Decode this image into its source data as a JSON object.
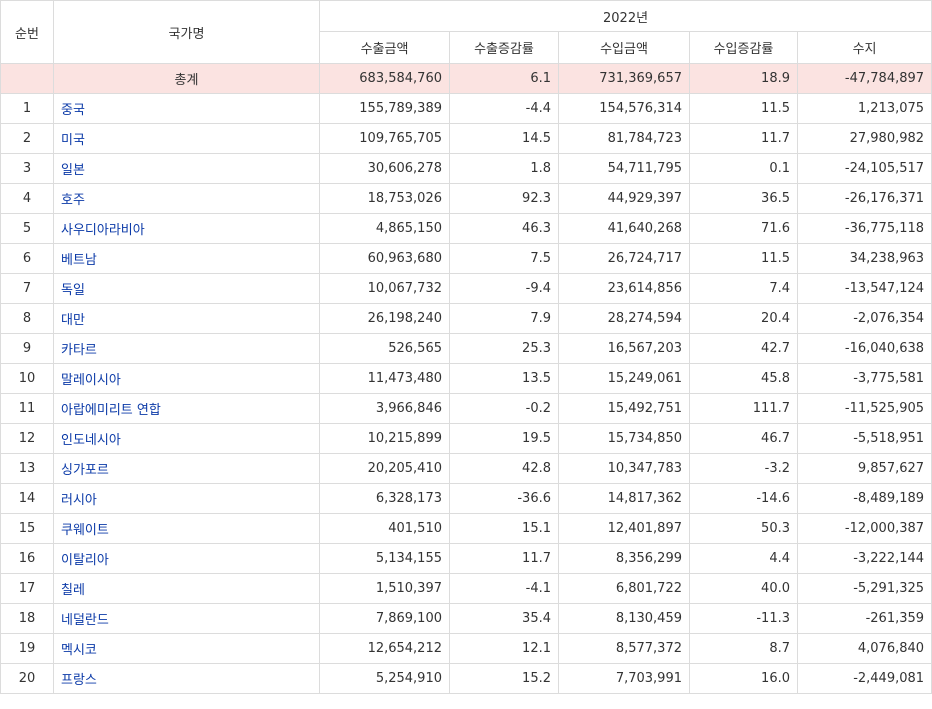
{
  "header": {
    "col_no": "순번",
    "col_country": "국가명",
    "year": "2022년",
    "col_export_amount": "수출금액",
    "col_export_change": "수출증감률",
    "col_import_amount": "수입금액",
    "col_import_change": "수입증감률",
    "col_balance": "수지"
  },
  "total": {
    "label": "총계",
    "export_amount": "683,584,760",
    "export_change": "6.1",
    "import_amount": "731,369,657",
    "import_change": "18.9",
    "balance": "-47,784,897"
  },
  "rows": [
    {
      "no": "1",
      "country": "중국",
      "export_amount": "155,789,389",
      "export_change": "-4.4",
      "import_amount": "154,576,314",
      "import_change": "11.5",
      "balance": "1,213,075"
    },
    {
      "no": "2",
      "country": "미국",
      "export_amount": "109,765,705",
      "export_change": "14.5",
      "import_amount": "81,784,723",
      "import_change": "11.7",
      "balance": "27,980,982"
    },
    {
      "no": "3",
      "country": "일본",
      "export_amount": "30,606,278",
      "export_change": "1.8",
      "import_amount": "54,711,795",
      "import_change": "0.1",
      "balance": "-24,105,517"
    },
    {
      "no": "4",
      "country": "호주",
      "export_amount": "18,753,026",
      "export_change": "92.3",
      "import_amount": "44,929,397",
      "import_change": "36.5",
      "balance": "-26,176,371"
    },
    {
      "no": "5",
      "country": "사우디아라비아",
      "export_amount": "4,865,150",
      "export_change": "46.3",
      "import_amount": "41,640,268",
      "import_change": "71.6",
      "balance": "-36,775,118"
    },
    {
      "no": "6",
      "country": "베트남",
      "export_amount": "60,963,680",
      "export_change": "7.5",
      "import_amount": "26,724,717",
      "import_change": "11.5",
      "balance": "34,238,963"
    },
    {
      "no": "7",
      "country": "독일",
      "export_amount": "10,067,732",
      "export_change": "-9.4",
      "import_amount": "23,614,856",
      "import_change": "7.4",
      "balance": "-13,547,124"
    },
    {
      "no": "8",
      "country": "대만",
      "export_amount": "26,198,240",
      "export_change": "7.9",
      "import_amount": "28,274,594",
      "import_change": "20.4",
      "balance": "-2,076,354"
    },
    {
      "no": "9",
      "country": "카타르",
      "export_amount": "526,565",
      "export_change": "25.3",
      "import_amount": "16,567,203",
      "import_change": "42.7",
      "balance": "-16,040,638"
    },
    {
      "no": "10",
      "country": "말레이시아",
      "export_amount": "11,473,480",
      "export_change": "13.5",
      "import_amount": "15,249,061",
      "import_change": "45.8",
      "balance": "-3,775,581"
    },
    {
      "no": "11",
      "country": "아랍에미리트 연합",
      "export_amount": "3,966,846",
      "export_change": "-0.2",
      "import_amount": "15,492,751",
      "import_change": "111.7",
      "balance": "-11,525,905"
    },
    {
      "no": "12",
      "country": "인도네시아",
      "export_amount": "10,215,899",
      "export_change": "19.5",
      "import_amount": "15,734,850",
      "import_change": "46.7",
      "balance": "-5,518,951"
    },
    {
      "no": "13",
      "country": "싱가포르",
      "export_amount": "20,205,410",
      "export_change": "42.8",
      "import_amount": "10,347,783",
      "import_change": "-3.2",
      "balance": "9,857,627"
    },
    {
      "no": "14",
      "country": "러시아",
      "export_amount": "6,328,173",
      "export_change": "-36.6",
      "import_amount": "14,817,362",
      "import_change": "-14.6",
      "balance": "-8,489,189"
    },
    {
      "no": "15",
      "country": "쿠웨이트",
      "export_amount": "401,510",
      "export_change": "15.1",
      "import_amount": "12,401,897",
      "import_change": "50.3",
      "balance": "-12,000,387"
    },
    {
      "no": "16",
      "country": "이탈리아",
      "export_amount": "5,134,155",
      "export_change": "11.7",
      "import_amount": "8,356,299",
      "import_change": "4.4",
      "balance": "-3,222,144"
    },
    {
      "no": "17",
      "country": "칠레",
      "export_amount": "1,510,397",
      "export_change": "-4.1",
      "import_amount": "6,801,722",
      "import_change": "40.0",
      "balance": "-5,291,325"
    },
    {
      "no": "18",
      "country": "네덜란드",
      "export_amount": "7,869,100",
      "export_change": "35.4",
      "import_amount": "8,130,459",
      "import_change": "-11.3",
      "balance": "-261,359"
    },
    {
      "no": "19",
      "country": "멕시코",
      "export_amount": "12,654,212",
      "export_change": "12.1",
      "import_amount": "8,577,372",
      "import_change": "8.7",
      "balance": "4,076,840"
    },
    {
      "no": "20",
      "country": "프랑스",
      "export_amount": "5,254,910",
      "export_change": "15.2",
      "import_amount": "7,703,991",
      "import_change": "16.0",
      "balance": "-2,449,081"
    }
  ],
  "colors": {
    "total_bg": "#fbe3e1",
    "link": "#0b3aa8",
    "border": "#dcdcdc"
  }
}
